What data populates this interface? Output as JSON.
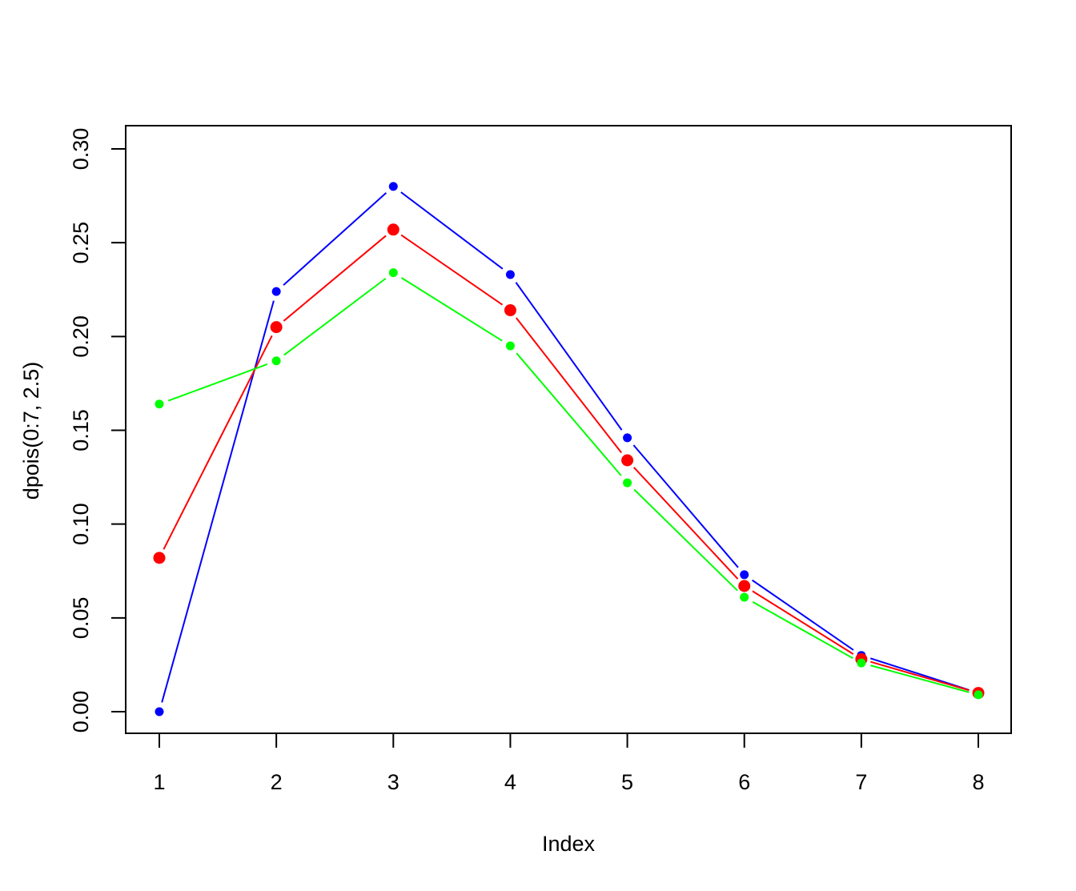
{
  "chart_data": {
    "type": "line",
    "x": [
      1,
      2,
      3,
      4,
      5,
      6,
      7,
      8
    ],
    "xlabel": "Index",
    "ylabel": "dpois(0:7, 2.5)",
    "xlim": [
      1,
      8
    ],
    "ylim": [
      0,
      0.3
    ],
    "x_ticks": [
      "1",
      "2",
      "3",
      "4",
      "5",
      "6",
      "7",
      "8"
    ],
    "y_ticks": [
      "0.00",
      "0.05",
      "0.10",
      "0.15",
      "0.20",
      "0.25",
      "0.30"
    ],
    "y_tick_values": [
      0,
      0.05,
      0.1,
      0.15,
      0.2,
      0.25,
      0.3
    ],
    "grid": false,
    "legend": "none",
    "series": [
      {
        "color": "#0000ff",
        "marker": "small-dot",
        "values": [
          0.0,
          0.224,
          0.28,
          0.233,
          0.146,
          0.073,
          0.03,
          0.01
        ]
      },
      {
        "color": "#ff0000",
        "marker": "large-dot",
        "values": [
          0.082,
          0.205,
          0.257,
          0.214,
          0.134,
          0.067,
          0.028,
          0.01
        ]
      },
      {
        "color": "#00ff00",
        "marker": "small-dot",
        "values": [
          0.164,
          0.187,
          0.234,
          0.195,
          0.122,
          0.061,
          0.026,
          0.009
        ]
      }
    ]
  }
}
